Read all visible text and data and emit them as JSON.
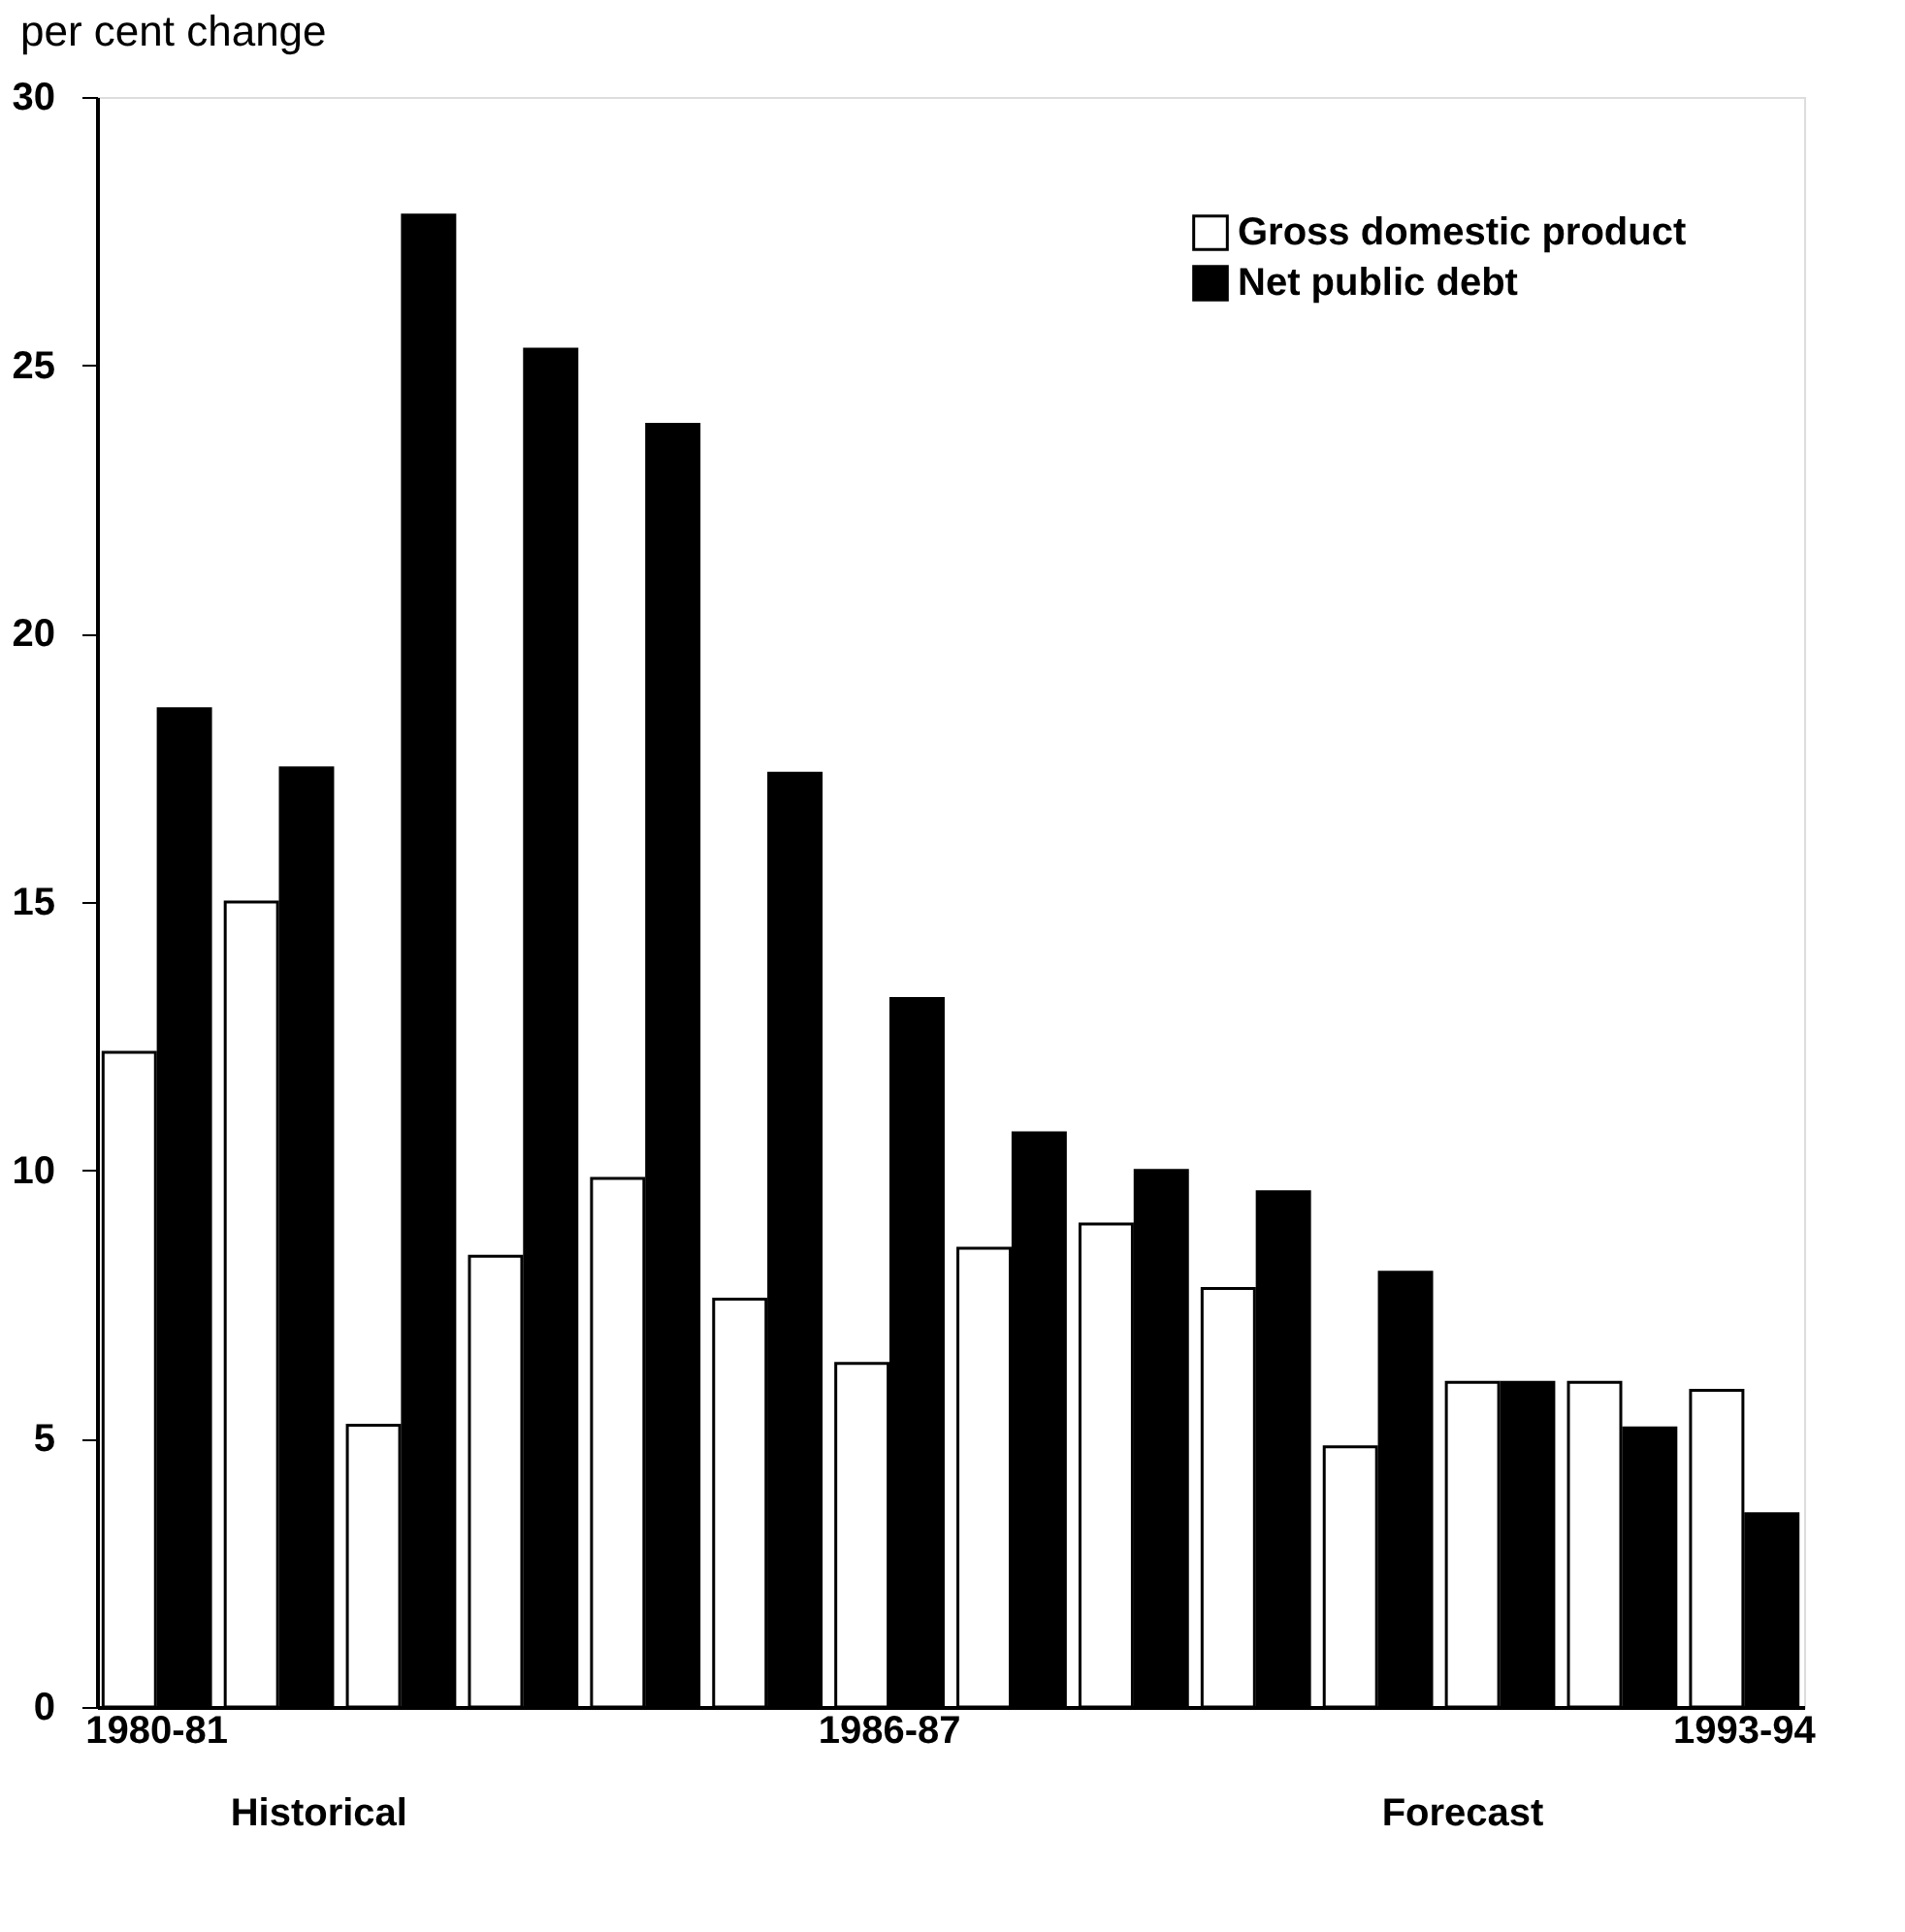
{
  "chart_data": {
    "type": "bar",
    "ylabel": "per cent change",
    "categories": [
      "1980-81",
      null,
      null,
      null,
      null,
      null,
      "1986-87",
      null,
      null,
      null,
      null,
      null,
      null,
      "1993-94"
    ],
    "series": [
      {
        "name": "Gross domestic product",
        "color": "#ffffff",
        "values": [
          12.2,
          15.0,
          5.25,
          8.4,
          9.85,
          7.6,
          6.4,
          8.55,
          9.0,
          7.8,
          4.85,
          6.05,
          6.05,
          5.9
        ]
      },
      {
        "name": "Net public debt",
        "color": "#000000",
        "values": [
          18.6,
          17.5,
          27.8,
          25.3,
          23.9,
          17.4,
          13.2,
          10.7,
          10.0,
          9.6,
          8.1,
          6.05,
          5.2,
          3.6
        ]
      }
    ],
    "ylim": [
      0,
      30
    ],
    "yticks": [
      0,
      5,
      10,
      15,
      20,
      25,
      30
    ],
    "grid": false,
    "legend": "top right",
    "annotations": [
      "Historical",
      "Forecast"
    ]
  }
}
